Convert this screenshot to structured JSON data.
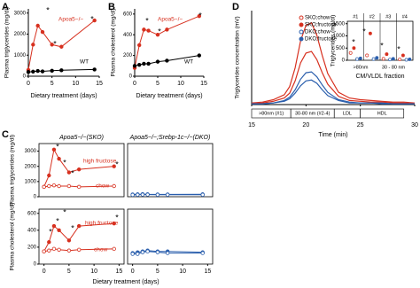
{
  "chart_data": [
    {
      "type": "line",
      "panel": "A",
      "ylabel": "Plasma triglycerides (mg/dl)",
      "xlabel": "Dietary treatment (days)",
      "x": [
        0,
        1,
        2,
        3,
        5,
        7,
        14
      ],
      "xlim": [
        0,
        15
      ],
      "xticks": [
        0,
        5,
        10,
        15
      ],
      "ylim": [
        0,
        3200
      ],
      "yticks": [
        0,
        1000,
        2000,
        3000
      ],
      "series": [
        {
          "name": "Apoa5−/−",
          "color": "#d7301f",
          "marker": "filled",
          "values": [
            300,
            1500,
            2400,
            2100,
            1500,
            1400,
            2650
          ]
        },
        {
          "name": "WT",
          "color": "#000000",
          "marker": "filled",
          "values": [
            200,
            220,
            250,
            230,
            260,
            280,
            320
          ]
        }
      ],
      "annotations": [
        "*",
        "*",
        "*"
      ]
    },
    {
      "type": "line",
      "panel": "B",
      "ylabel": "Plasma cholesterol (mg/dl)",
      "xlabel": "Dietary treatment (days)",
      "x": [
        0,
        1,
        2,
        3,
        5,
        7,
        14
      ],
      "xlim": [
        0,
        15
      ],
      "xticks": [
        0,
        5,
        10,
        15
      ],
      "ylim": [
        0,
        650
      ],
      "yticks": [
        0,
        200,
        400,
        600
      ],
      "series": [
        {
          "name": "Apoa5−/−",
          "color": "#d7301f",
          "marker": "filled",
          "values": [
            80,
            300,
            450,
            440,
            400,
            450,
            580
          ]
        },
        {
          "name": "WT",
          "color": "#000000",
          "marker": "filled",
          "values": [
            100,
            110,
            120,
            120,
            140,
            150,
            200
          ]
        }
      ],
      "annotations": [
        "*",
        "*",
        "*"
      ]
    },
    {
      "type": "line",
      "panel": "C",
      "title": "Apoa5−/−(SKO)",
      "ylabel": "Plasma triglycerides (mg/dl)",
      "x": [
        0,
        1,
        2,
        3,
        5,
        7,
        14
      ],
      "xlim": [
        -1,
        16
      ],
      "ylim": [
        0,
        3500
      ],
      "yticks": [
        0,
        1000,
        2000,
        3000
      ],
      "series": [
        {
          "name": "high fructose",
          "color": "#d7301f",
          "marker": "filled",
          "values": [
            650,
            1400,
            3100,
            2500,
            1600,
            1800,
            2000
          ]
        },
        {
          "name": "chow",
          "color": "#d7301f",
          "marker": "open",
          "values": [
            650,
            700,
            750,
            700,
            700,
            650,
            700
          ]
        }
      ],
      "annotations": [
        "*",
        "*",
        "*",
        "*"
      ]
    },
    {
      "type": "line",
      "title": "Apoa5−/−;Srebp-1c−/−(DKO)",
      "x": [
        0,
        1,
        2,
        3,
        5,
        7,
        14
      ],
      "xlim": [
        -1,
        16
      ],
      "ylim": [
        0,
        3500
      ],
      "series": [
        {
          "color": "#2b5fad",
          "marker": "filled",
          "values": [
            150,
            160,
            170,
            160,
            150,
            150,
            160
          ]
        },
        {
          "color": "#2b5fad",
          "marker": "open",
          "values": [
            120,
            130,
            140,
            140,
            130,
            130,
            130
          ]
        }
      ]
    },
    {
      "type": "line",
      "ylabel": "Plasma cholesterol (mg/dl)",
      "xlabel": "Dietary treatment (days)",
      "x": [
        0,
        1,
        2,
        3,
        5,
        7,
        14
      ],
      "xlim": [
        -1,
        16
      ],
      "xticks": [
        0,
        5,
        10,
        15
      ],
      "ylim": [
        0,
        650
      ],
      "yticks": [
        0,
        200,
        400,
        600
      ],
      "series": [
        {
          "name": "high fructose",
          "color": "#d7301f",
          "marker": "filled",
          "values": [
            150,
            260,
            450,
            400,
            280,
            450,
            480
          ]
        },
        {
          "name": "chow",
          "color": "#d7301f",
          "marker": "open",
          "values": [
            150,
            160,
            180,
            170,
            160,
            170,
            180
          ]
        }
      ],
      "annotations": [
        "*",
        "*",
        "*",
        "*",
        "*"
      ]
    },
    {
      "type": "line",
      "x": [
        0,
        1,
        2,
        3,
        5,
        7,
        14
      ],
      "xlim": [
        -1,
        16
      ],
      "xticks": [
        0,
        5,
        10,
        15
      ],
      "ylim": [
        0,
        650
      ],
      "series": [
        {
          "color": "#2b5fad",
          "marker": "filled",
          "values": [
            130,
            140,
            150,
            160,
            150,
            150,
            140
          ]
        },
        {
          "color": "#2b5fad",
          "marker": "open",
          "values": [
            120,
            120,
            140,
            150,
            140,
            130,
            130
          ]
        }
      ]
    },
    {
      "type": "line",
      "panel": "D",
      "ylabel": "Triglycerides concentration (mV)",
      "xlabel": "Time (min)",
      "x": [
        15,
        16,
        17,
        18,
        18.5,
        19,
        19.5,
        20,
        20.5,
        21,
        21.5,
        22,
        23,
        24,
        25,
        26,
        27,
        28,
        29,
        30
      ],
      "xlim": [
        15,
        30
      ],
      "xticks": [
        15,
        20,
        25,
        30
      ],
      "ylim": [
        0,
        115
      ],
      "series": [
        {
          "name": "SKO;chow",
          "color": "#d7301f",
          "marker": "open",
          "values": [
            1,
            2,
            4,
            8,
            14,
            29,
            51,
            63,
            65,
            55,
            39,
            25,
            10,
            5,
            4,
            3,
            3,
            2,
            2,
            1
          ]
        },
        {
          "name": "SKO;fructose",
          "color": "#d7301f",
          "marker": "filled",
          "values": [
            2,
            3,
            6,
            12,
            22,
            45,
            78,
            97,
            100,
            85,
            60,
            38,
            15,
            8,
            6,
            5,
            4,
            3,
            3,
            2
          ]
        },
        {
          "name": "DKO;chow",
          "color": "#2b5fad",
          "marker": "open",
          "values": [
            1,
            1,
            2,
            4,
            7,
            14,
            23,
            29,
            30,
            26,
            18,
            11,
            5,
            2,
            2,
            2,
            1,
            1,
            1,
            1
          ]
        },
        {
          "name": "DKO;fructose",
          "color": "#2b5fad",
          "marker": "filled",
          "values": [
            1,
            1,
            2,
            5,
            9,
            18,
            31,
            39,
            40,
            34,
            24,
            15,
            6,
            3,
            2,
            2,
            2,
            1,
            1,
            1
          ]
        }
      ],
      "fractions": [
        ">80nm (#1)",
        "30-80 nm (#2-4)",
        "LDL",
        "HDL"
      ]
    },
    {
      "type": "dot",
      "ylabel": "Triglycerides (mg/dl)",
      "xlabel": "CM/VLDL fraction",
      "categories": [
        "#1",
        "#2",
        "#3",
        "#4"
      ],
      "groups": [
        ">80nm",
        "30 - 80 nm"
      ],
      "ylim": [
        0,
        1600
      ],
      "yticks": [
        0,
        500,
        1000,
        1500
      ],
      "series": [
        {
          "color": "#d7301f",
          "marker": "open",
          "values": [
            300,
            200,
            60,
            40
          ]
        },
        {
          "color": "#d7301f",
          "marker": "filled",
          "values": [
            500,
            1100,
            250,
            200
          ]
        },
        {
          "color": "#2b5fad",
          "marker": "open",
          "values": [
            50,
            50,
            30,
            20
          ]
        },
        {
          "color": "#2b5fad",
          "marker": "filled",
          "values": [
            80,
            100,
            60,
            40
          ]
        }
      ],
      "annotations": [
        "*",
        "*",
        "*",
        "*"
      ]
    }
  ]
}
